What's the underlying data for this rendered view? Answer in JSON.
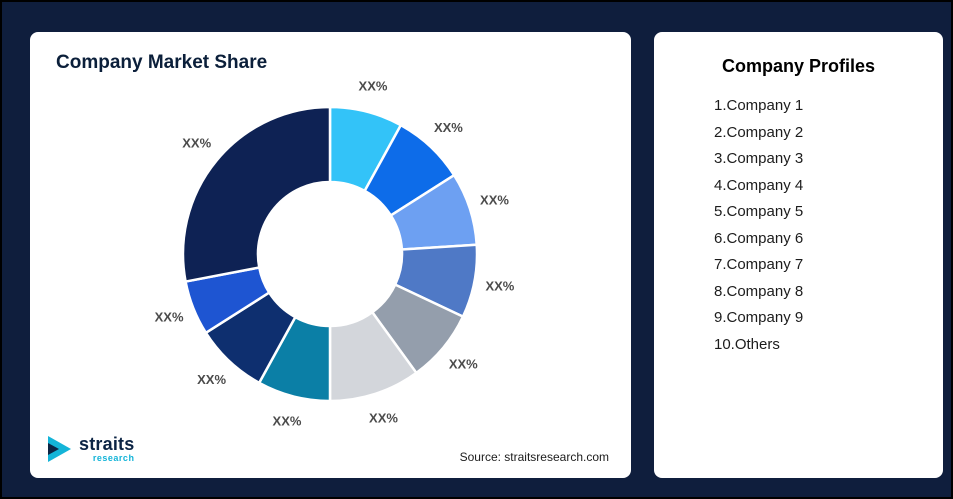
{
  "colors": {
    "background": "#0f1e3d",
    "card": "#ffffff",
    "title_text": "#0b1f3a",
    "segment_label_text": "#4b4b4b",
    "logo_teal": "#14b4d8",
    "logo_navy": "#0c2444"
  },
  "left_card": {
    "title": "Company Market Share",
    "source": "Source: straitsresearch.com",
    "logo": {
      "brand": "straits",
      "sub_brand": "research"
    }
  },
  "right_card": {
    "title": "Company Profiles",
    "items": [
      "1.Company 1",
      "2.Company 2",
      "3.Company 3",
      "4.Company 4",
      "5.Company 5",
      "6.Company 6",
      "7.Company 7",
      "8.Company 8",
      "9.Company 9",
      "10.Others"
    ]
  },
  "chart_data": {
    "type": "pie",
    "subtype": "donut",
    "title": "Company Market Share",
    "categories": [
      "Company 1",
      "Company 2",
      "Company 3",
      "Company 4",
      "Company 5",
      "Company 6",
      "Company 7",
      "Company 8",
      "Company 9",
      "Others"
    ],
    "values": [
      8,
      8,
      8,
      8,
      8,
      10,
      8,
      8,
      6,
      28
    ],
    "values_estimated": true,
    "segment_labels": [
      "XX%",
      "XX%",
      "XX%",
      "XX%",
      "XX%",
      "XX%",
      "XX%",
      "XX%",
      "XX%",
      "XX%"
    ],
    "colors": [
      "#33c3f8",
      "#0d6ce9",
      "#6da0f2",
      "#4f79c6",
      "#949eac",
      "#d3d6db",
      "#0b7fa6",
      "#0e2f6f",
      "#1e55d2",
      "#0e2254"
    ],
    "start_angle_deg": 0,
    "direction": "clockwise",
    "inner_radius_ratio": 0.49,
    "legend": "none",
    "slice_stroke": "#ffffff"
  }
}
